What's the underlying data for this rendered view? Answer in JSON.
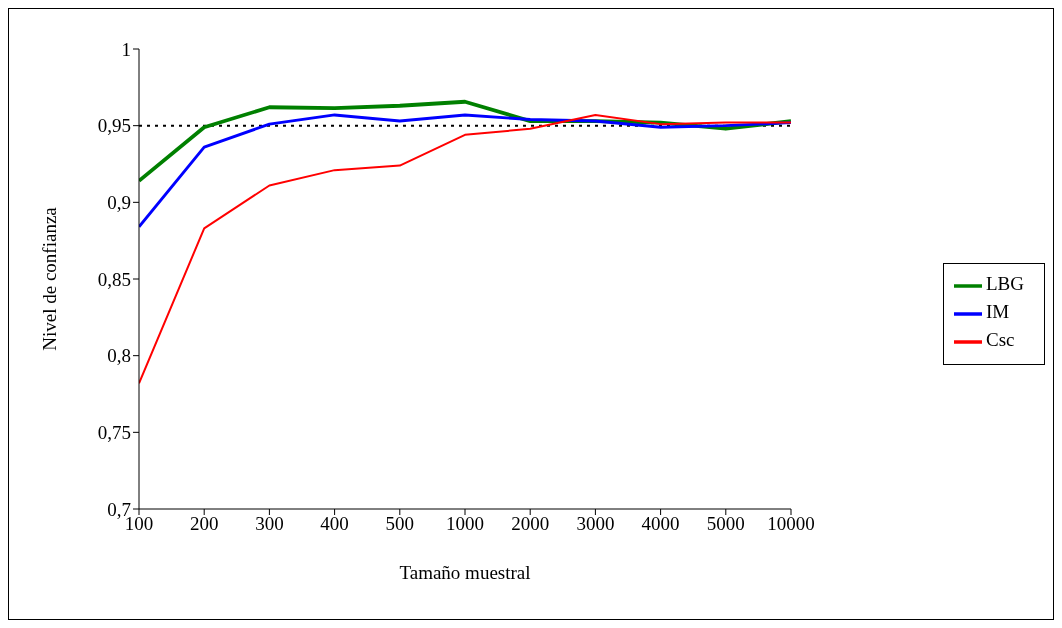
{
  "chart_data": {
    "type": "line",
    "xlabel": "Tamaño muestral",
    "ylabel": "Nivel de confianza",
    "categories": [
      "100",
      "200",
      "300",
      "400",
      "500",
      "1000",
      "2000",
      "3000",
      "4000",
      "5000",
      "10000"
    ],
    "series": [
      {
        "name": "LBG",
        "color": "#008000",
        "values": [
          0.914,
          0.949,
          0.962,
          0.9615,
          0.963,
          0.9656,
          0.953,
          0.953,
          0.952,
          0.948,
          0.953
        ]
      },
      {
        "name": "IM",
        "color": "#0000ff",
        "values": [
          0.884,
          0.936,
          0.951,
          0.957,
          0.953,
          0.957,
          0.954,
          0.953,
          0.949,
          0.95,
          0.952
        ]
      },
      {
        "name": "Csc",
        "color": "#ff0000",
        "values": [
          0.782,
          0.883,
          0.911,
          0.921,
          0.924,
          0.944,
          0.948,
          0.957,
          0.951,
          0.952,
          0.952
        ]
      }
    ],
    "ylim": [
      0.7,
      1
    ],
    "yticks": [
      {
        "value": 0.7,
        "label": "0,7"
      },
      {
        "value": 0.75,
        "label": "0,75"
      },
      {
        "value": 0.8,
        "label": "0,8"
      },
      {
        "value": 0.85,
        "label": "0,85"
      },
      {
        "value": 0.9,
        "label": "0,9"
      },
      {
        "value": 0.95,
        "label": "0,95"
      },
      {
        "value": 1,
        "label": "1"
      }
    ],
    "ref_lines": [
      {
        "axis": "y",
        "value": 0.95,
        "color": "#000000",
        "line_style": "dotted"
      }
    ],
    "grid": false,
    "legend": "right",
    "marker": "none",
    "line_style": "solid"
  }
}
